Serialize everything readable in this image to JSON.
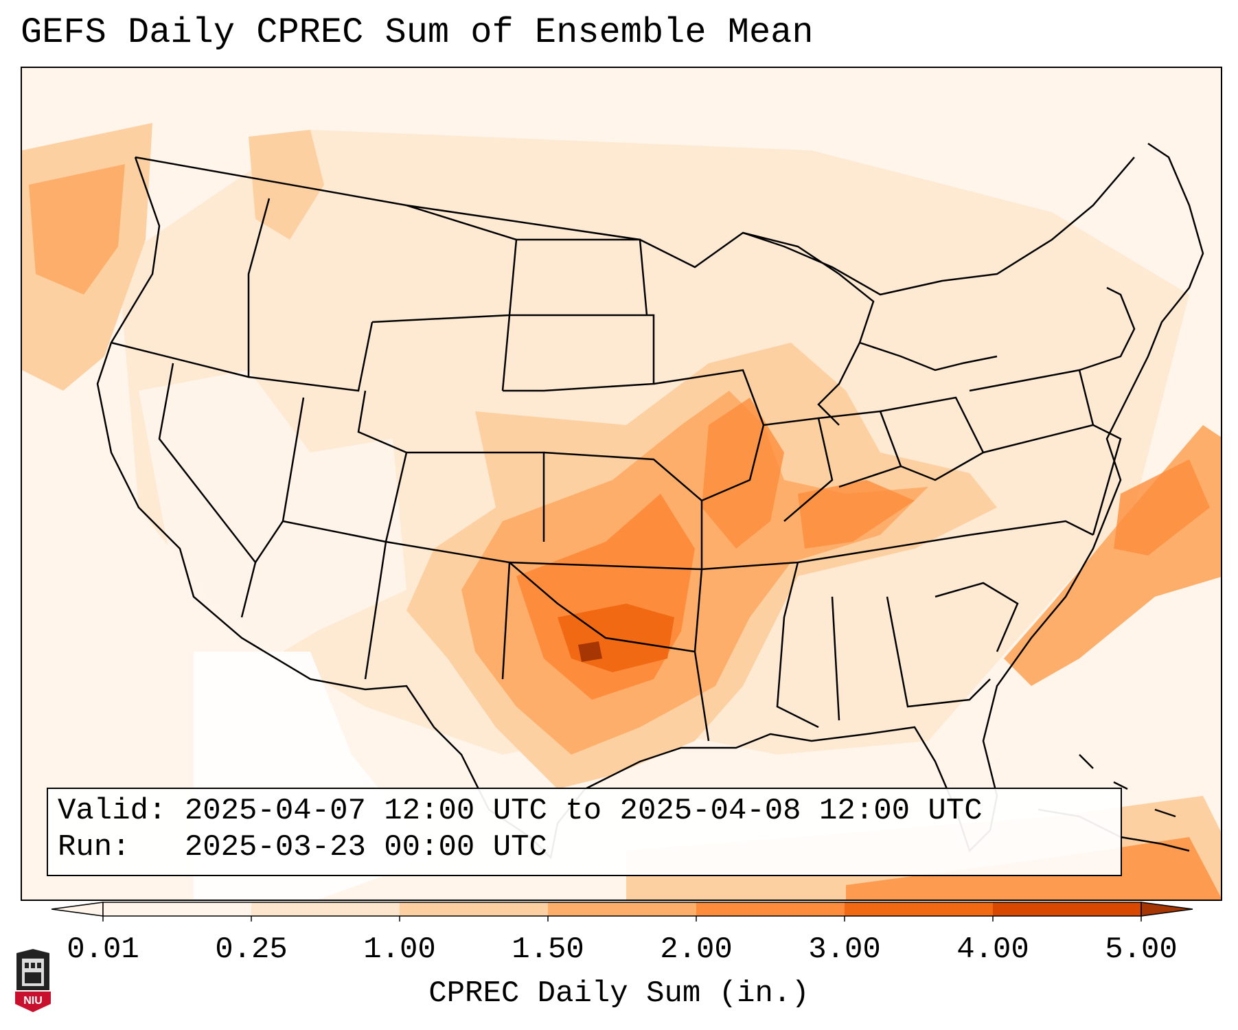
{
  "title": "GEFS Daily CPREC Sum of Ensemble Mean",
  "info": {
    "valid_line": "Valid: 2025-04-07 12:00 UTC to 2025-04-08 12:00 UTC",
    "run_line": "Run:   2025-03-23 00:00 UTC"
  },
  "colorbar": {
    "label": "CPREC Daily Sum (in.)",
    "ticks": [
      "0.01",
      "0.25",
      "1.00",
      "1.50",
      "2.00",
      "3.00",
      "4.00",
      "5.00"
    ],
    "colors": [
      "#fff5eb",
      "#fee6ce",
      "#fdd0a2",
      "#fdae6b",
      "#fd8d3c",
      "#f16913",
      "#d94801",
      "#a63603"
    ],
    "extend": "both"
  },
  "logo": {
    "text": "NIU",
    "color": "#c8102e"
  }
}
